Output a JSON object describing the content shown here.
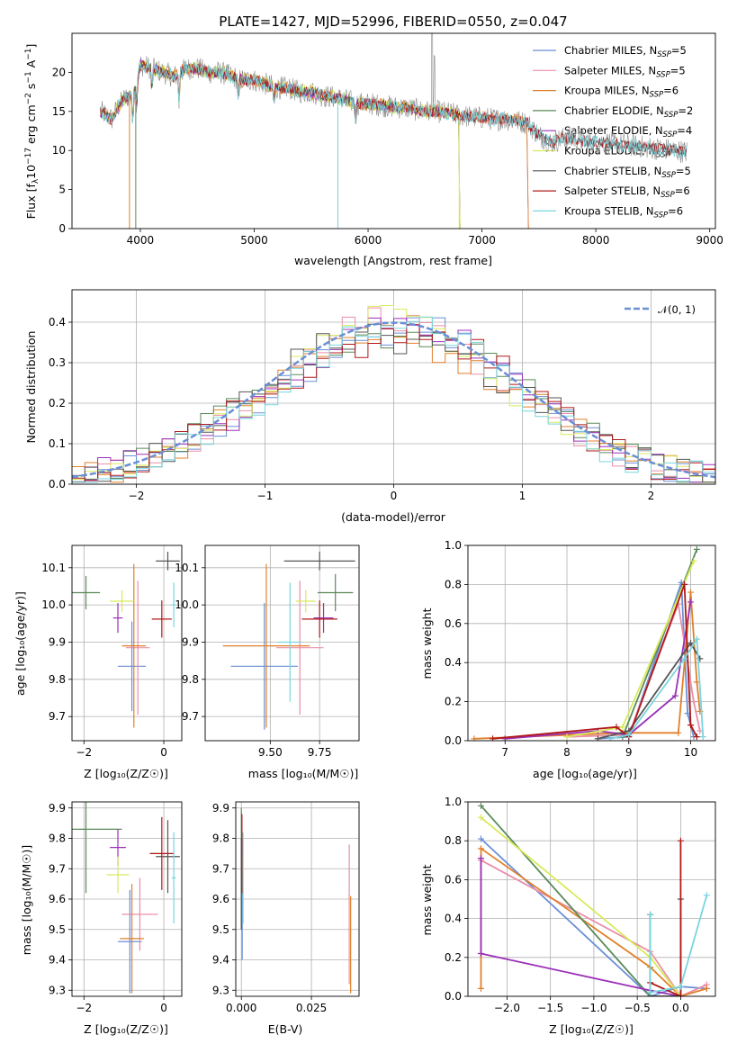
{
  "colors": {
    "Chabrier MILES": "#6a8fd6",
    "Salpeter MILES": "#e98fa8",
    "Kroupa MILES": "#e0802a",
    "Chabrier ELODIE": "#5a8a5a",
    "Salpeter ELODIE": "#9b30b8",
    "Kroupa ELODIE": "#d9ea5c",
    "Chabrier STELIB": "#555555",
    "Salpeter STELIB": "#b01818",
    "Kroupa STELIB": "#7ad4dc",
    "gauss": "#6a8fd6"
  },
  "chart_data": [
    {
      "type": "line",
      "title": "PLATE=1427, MJD=52996, FIBERID=0550, z=0.047",
      "xlabel": "wavelength [Angstrom, rest frame]",
      "ylabel": "Flux [f",
      "ylabel_parts": [
        "Flux [f",
        "λ",
        "10",
        "−17",
        " erg cm",
        "−2",
        " s",
        "−1",
        " A",
        "−1",
        "]"
      ],
      "xlim": [
        3400,
        9050
      ],
      "ylim": [
        0,
        25
      ],
      "xticks": [
        "4000",
        "5000",
        "6000",
        "7000",
        "8000",
        "9000"
      ],
      "yticks": [
        "0",
        "5",
        "10",
        "15",
        "20"
      ],
      "legend_position": "top-right",
      "legend": [
        {
          "base": "Chabrier MILES, N",
          "sub": "SSP",
          "tail": "=5"
        },
        {
          "base": "Salpeter MILES, N",
          "sub": "SSP",
          "tail": "=5"
        },
        {
          "base": "Kroupa MILES, N",
          "sub": "SSP",
          "tail": "=6"
        },
        {
          "base": "Chabrier ELODIE, N",
          "sub": "SSP",
          "tail": "=2"
        },
        {
          "base": "Salpeter ELODIE, N",
          "sub": "SSP",
          "tail": "=4"
        },
        {
          "base": "Kroupa ELODIE, N",
          "sub": "SSP",
          "tail": "=3"
        },
        {
          "base": "Chabrier STELIB, N",
          "sub": "SSP",
          "tail": "=5"
        },
        {
          "base": "Salpeter STELIB, N",
          "sub": "SSP",
          "tail": "=6"
        },
        {
          "base": "Kroupa STELIB, N",
          "sub": "SSP",
          "tail": "=6"
        }
      ],
      "spectrum": {
        "x": [
          3650,
          3700,
          3750,
          3800,
          3850,
          3900,
          3950,
          4000,
          4100,
          4200,
          4300,
          4400,
          4500,
          4600,
          4700,
          4800,
          4900,
          5000,
          5100,
          5200,
          5300,
          5400,
          5500,
          5600,
          5700,
          5800,
          5900,
          6000,
          6100,
          6200,
          6300,
          6400,
          6500,
          6600,
          6700,
          6800,
          6900,
          7000,
          7100,
          7200,
          7300,
          7400,
          7500,
          7600,
          7700,
          7800,
          7900,
          8000,
          8100,
          8200,
          8300,
          8400,
          8500,
          8600,
          8700,
          8800
        ],
        "y": [
          15.0,
          14.5,
          14.0,
          15.5,
          16.5,
          17.0,
          17.5,
          21.0,
          20.5,
          20.0,
          19.5,
          20.5,
          20.5,
          20.0,
          20.0,
          19.5,
          19.0,
          19.0,
          18.5,
          18.0,
          18.0,
          17.5,
          17.5,
          17.0,
          16.8,
          16.5,
          16.0,
          16.0,
          15.8,
          15.6,
          15.5,
          15.3,
          15.0,
          15.0,
          14.8,
          14.5,
          14.3,
          14.2,
          14.0,
          14.0,
          13.8,
          13.5,
          12.0,
          11.0,
          11.5,
          11.5,
          11.2,
          11.0,
          11.0,
          10.8,
          10.7,
          10.5,
          10.3,
          10.2,
          10.0,
          9.8
        ]
      }
    },
    {
      "type": "line",
      "xlabel": "(data-model)/error",
      "ylabel": "Normed distribution",
      "xlim": [
        -2.5,
        2.5
      ],
      "ylim": [
        0,
        0.48
      ],
      "xticks": [
        "−2",
        "−1",
        "0",
        "1",
        "2"
      ],
      "yticks": [
        "0.0",
        "0.1",
        "0.2",
        "0.3",
        "0.4"
      ],
      "legend_position": "top-right",
      "gauss_label": "𝒩(0, 1)"
    },
    {
      "type": "scatter",
      "xlabel": "Z [log₁₀(Z/Z☉)]",
      "ylabel": "age  [log₁₀(age/yr)]",
      "xlim": [
        -2.3,
        0.45
      ],
      "ylim": [
        9.635,
        10.16
      ],
      "xticks": [
        "−2",
        "0"
      ],
      "yticks": [
        "9.7",
        "9.8",
        "9.9",
        "10.0",
        "10.1"
      ],
      "points": [
        {
          "name": "Chabrier MILES",
          "x": -0.8,
          "y": 9.835,
          "xerr": 0.35,
          "yerr": 0.12
        },
        {
          "name": "Salpeter MILES",
          "x": -0.65,
          "y": 9.885,
          "xerr": 0.3,
          "yerr": 0.18
        },
        {
          "name": "Kroupa MILES",
          "x": -0.75,
          "y": 9.89,
          "xerr": 0.3,
          "yerr": 0.22
        },
        {
          "name": "Chabrier ELODIE",
          "x": -1.95,
          "y": 10.033,
          "xerr": 0.35,
          "yerr": 0.045
        },
        {
          "name": "Salpeter ELODIE",
          "x": -1.15,
          "y": 9.965,
          "xerr": 0.12,
          "yerr": 0.04
        },
        {
          "name": "Kroupa ELODIE",
          "x": -1.05,
          "y": 10.01,
          "xerr": 0.3,
          "yerr": 0.03
        },
        {
          "name": "Chabrier STELIB",
          "x": 0.1,
          "y": 10.118,
          "xerr": 0.3,
          "yerr": 0.025
        },
        {
          "name": "Salpeter STELIB",
          "x": -0.05,
          "y": 9.962,
          "xerr": 0.25,
          "yerr": 0.05
        },
        {
          "name": "Kroupa STELIB",
          "x": 0.25,
          "y": 10.0,
          "xerr": 0.06,
          "yerr": 0.06
        }
      ]
    },
    {
      "type": "scatter",
      "xlabel": "mass [log₁₀(M/M☉)]",
      "ylabel": "",
      "xlim": [
        9.17,
        9.95
      ],
      "ylim": [
        9.635,
        10.16
      ],
      "xticks": [
        "9.50",
        "9.75"
      ],
      "yticks": [
        "9.7",
        "9.8",
        "9.9",
        "10.0",
        "10.1"
      ],
      "points": [
        {
          "name": "Chabrier MILES",
          "x": 9.47,
          "y": 9.835,
          "xerr": 0.17,
          "yerr": 0.17
        },
        {
          "name": "Salpeter MILES",
          "x": 9.65,
          "y": 9.885,
          "xerr": 0.12,
          "yerr": 0.18
        },
        {
          "name": "Kroupa MILES",
          "x": 9.48,
          "y": 9.89,
          "xerr": 0.22,
          "yerr": 0.22
        },
        {
          "name": "Chabrier ELODIE",
          "x": 9.83,
          "y": 10.033,
          "xerr": 0.09,
          "yerr": 0.05
        },
        {
          "name": "Salpeter ELODIE",
          "x": 9.77,
          "y": 9.965,
          "xerr": 0.05,
          "yerr": 0.04
        },
        {
          "name": "Kroupa ELODIE",
          "x": 9.68,
          "y": 10.01,
          "xerr": 0.05,
          "yerr": 0.03
        },
        {
          "name": "Chabrier STELIB",
          "x": 9.75,
          "y": 10.118,
          "xerr": 0.18,
          "yerr": 0.025
        },
        {
          "name": "Salpeter STELIB",
          "x": 9.75,
          "y": 9.962,
          "xerr": 0.09,
          "yerr": 0.05
        },
        {
          "name": "Kroupa STELIB",
          "x": 9.6,
          "y": 9.9,
          "xerr": 0.06,
          "yerr": 0.16
        }
      ]
    },
    {
      "type": "line",
      "xlabel": "age  [log₁₀(age/yr)]",
      "ylabel": "mass weight",
      "xlim": [
        6.4,
        10.4
      ],
      "ylim": [
        0,
        1.0
      ],
      "xticks": [
        "7",
        "8",
        "9",
        "10"
      ],
      "yticks": [
        "0.0",
        "0.2",
        "0.4",
        "0.6",
        "0.8",
        "1.0"
      ],
      "series": [
        {
          "name": "Chabrier MILES",
          "x": [
            8.5,
            9.0,
            9.85,
            9.95,
            10.05
          ],
          "y": [
            0.01,
            0.02,
            0.81,
            0.14,
            0.02
          ]
        },
        {
          "name": "Salpeter MILES",
          "x": [
            8.0,
            9.0,
            9.8,
            10.05,
            10.15
          ],
          "y": [
            0.02,
            0.03,
            0.7,
            0.2,
            0.05
          ]
        },
        {
          "name": "Kroupa MILES",
          "x": [
            6.5,
            8.9,
            9.8,
            10.0,
            10.1,
            10.15
          ],
          "y": [
            0.01,
            0.04,
            0.04,
            0.76,
            0.3,
            0.15
          ]
        },
        {
          "name": "Chabrier ELODIE",
          "x": [
            8.9,
            10.1
          ],
          "y": [
            0.02,
            0.98
          ]
        },
        {
          "name": "Salpeter ELODIE",
          "x": [
            7.0,
            8.5,
            9.0,
            9.75,
            10.0
          ],
          "y": [
            0.01,
            0.05,
            0.03,
            0.23,
            0.71
          ]
        },
        {
          "name": "Kroupa ELODIE",
          "x": [
            8.0,
            8.9,
            10.05
          ],
          "y": [
            0.02,
            0.07,
            0.92
          ]
        },
        {
          "name": "Chabrier STELIB",
          "x": [
            8.5,
            9.0,
            10.0,
            10.15
          ],
          "y": [
            0.01,
            0.05,
            0.5,
            0.42
          ]
        },
        {
          "name": "Salpeter STELIB",
          "x": [
            6.8,
            8.8,
            9.0,
            9.9,
            10.0,
            10.1
          ],
          "y": [
            0.01,
            0.07,
            0.02,
            0.8,
            0.08,
            0.02
          ]
        },
        {
          "name": "Kroupa STELIB",
          "x": [
            8.7,
            9.0,
            9.9,
            10.1,
            10.2
          ],
          "y": [
            0.01,
            0.03,
            0.42,
            0.52,
            0.02
          ]
        }
      ]
    },
    {
      "type": "scatter",
      "xlabel": "Z [log₁₀(Z/Z☉)]",
      "ylabel": "mass [log₁₀(M/M☉)]",
      "xlim": [
        -2.3,
        0.45
      ],
      "ylim": [
        9.28,
        9.92
      ],
      "xticks": [
        "−2",
        "0"
      ],
      "yticks": [
        "9.3",
        "9.4",
        "9.5",
        "9.6",
        "9.7",
        "9.8",
        "9.9"
      ],
      "points": [
        {
          "name": "Chabrier MILES",
          "x": -0.85,
          "y": 9.46,
          "xerr": 0.3,
          "yerr": 0.17
        },
        {
          "name": "Salpeter MILES",
          "x": -0.6,
          "y": 9.55,
          "xerr": 0.45,
          "yerr": 0.12
        },
        {
          "name": "Kroupa MILES",
          "x": -0.8,
          "y": 9.47,
          "xerr": 0.3,
          "yerr": 0.18
        },
        {
          "name": "Chabrier ELODIE",
          "x": -1.95,
          "y": 9.83,
          "xerr": 0.9,
          "yerr": 0.21
        },
        {
          "name": "Salpeter ELODIE",
          "x": -1.15,
          "y": 9.77,
          "xerr": 0.2,
          "yerr": 0.06
        },
        {
          "name": "Kroupa ELODIE",
          "x": -1.15,
          "y": 9.68,
          "xerr": 0.28,
          "yerr": 0.06
        },
        {
          "name": "Chabrier STELIB",
          "x": 0.1,
          "y": 9.74,
          "xerr": 0.3,
          "yerr": 0.12
        },
        {
          "name": "Salpeter STELIB",
          "x": -0.05,
          "y": 9.75,
          "xerr": 0.3,
          "yerr": 0.12
        },
        {
          "name": "Kroupa STELIB",
          "x": 0.25,
          "y": 9.67,
          "xerr": 0.05,
          "yerr": 0.15
        }
      ]
    },
    {
      "type": "scatter",
      "xlabel": "E(B-V)",
      "ylabel": "",
      "xlim": [
        -0.002,
        0.042
      ],
      "ylim": [
        9.28,
        9.92
      ],
      "xticks": [
        "0.000",
        "0.025"
      ],
      "yticks": [
        "9.3",
        "9.4",
        "9.5",
        "9.6",
        "9.7",
        "9.8",
        "9.9"
      ],
      "points": [
        {
          "name": "Chabrier MILES",
          "x": 0.0003,
          "y": 9.6,
          "xerr": 0.0,
          "yerr": 0.2
        },
        {
          "name": "Salpeter MILES",
          "x": 0.0385,
          "y": 9.55,
          "xerr": 0.0,
          "yerr": 0.23
        },
        {
          "name": "Kroupa MILES",
          "x": 0.039,
          "y": 9.45,
          "xerr": 0.0,
          "yerr": 0.16
        },
        {
          "name": "Chabrier ELODIE",
          "x": 0.0,
          "y": 9.7,
          "xerr": 0.0,
          "yerr": 0.2
        },
        {
          "name": "Salpeter ELODIE",
          "x": 0.0003,
          "y": 9.75,
          "xerr": 0.0,
          "yerr": 0.05
        },
        {
          "name": "Kroupa ELODIE",
          "x": 0.0005,
          "y": 9.7,
          "xerr": 0.0,
          "yerr": 0.05
        },
        {
          "name": "Chabrier STELIB",
          "x": 0.0,
          "y": 9.65,
          "xerr": 0.0,
          "yerr": 0.15
        },
        {
          "name": "Salpeter STELIB",
          "x": 0.0002,
          "y": 9.75,
          "xerr": 0.0,
          "yerr": 0.13
        },
        {
          "name": "Kroupa STELIB",
          "x": 0.0006,
          "y": 9.67,
          "xerr": 0.0,
          "yerr": 0.15
        }
      ]
    },
    {
      "type": "line",
      "xlabel": "Z [log₁₀(Z/Z☉)]",
      "ylabel": "mass weight",
      "xlim": [
        -2.45,
        0.4
      ],
      "ylim": [
        0,
        1.0
      ],
      "xticks": [
        "−2.0",
        "−1.5",
        "−1.0",
        "−0.5",
        "0.0"
      ],
      "yticks": [
        "0.0",
        "0.2",
        "0.4",
        "0.6",
        "0.8",
        "1.0"
      ],
      "series": [
        {
          "name": "Chabrier MILES",
          "x": [
            -2.3,
            -0.35,
            0.0,
            0.3
          ],
          "y": [
            0.81,
            0.0,
            0.05,
            0.04
          ]
        },
        {
          "name": "Salpeter MILES",
          "x": [
            -2.3,
            -0.35,
            0.0,
            0.3
          ],
          "y": [
            0.7,
            0.23,
            0.0,
            0.06
          ]
        },
        {
          "name": "Kroupa MILES",
          "x": [
            -2.3,
            -2.3,
            -0.35,
            0.0,
            0.3
          ],
          "y": [
            0.04,
            0.76,
            0.15,
            0.0,
            0.04
          ]
        },
        {
          "name": "Chabrier ELODIE",
          "x": [
            -2.3,
            -0.35
          ],
          "y": [
            0.98,
            0.0
          ]
        },
        {
          "name": "Salpeter ELODIE",
          "x": [
            -2.3,
            -2.3,
            -0.35,
            0.0
          ],
          "y": [
            0.71,
            0.22,
            0.03,
            0.0
          ]
        },
        {
          "name": "Kroupa ELODIE",
          "x": [
            -2.3,
            -0.35,
            0.0
          ],
          "y": [
            0.92,
            0.2,
            0.0
          ]
        },
        {
          "name": "Chabrier STELIB",
          "x": [
            -0.35,
            -0.35,
            0.0,
            0.0
          ],
          "y": [
            0.42,
            0.0,
            0.0,
            0.5
          ]
        },
        {
          "name": "Salpeter STELIB",
          "x": [
            -0.35,
            0.0,
            0.0
          ],
          "y": [
            0.07,
            0.0,
            0.8
          ]
        },
        {
          "name": "Kroupa STELIB",
          "x": [
            -0.35,
            -0.35,
            0.0,
            0.3
          ],
          "y": [
            0.42,
            0.02,
            0.05,
            0.52
          ]
        }
      ]
    }
  ]
}
